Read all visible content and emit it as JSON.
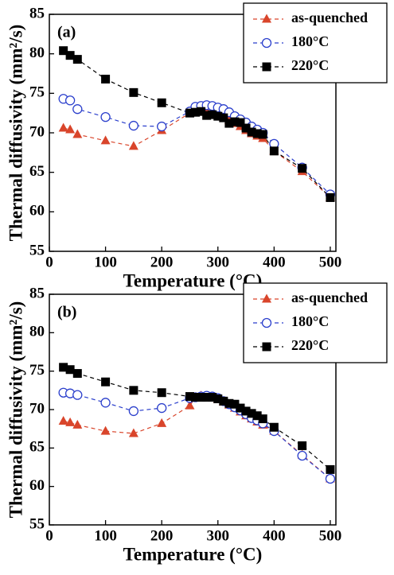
{
  "chart_data": [
    {
      "type": "line",
      "annotation": "(a)",
      "x_label": "Temperature (°C)",
      "y_label": "Thermal diffusivity (mm²/s)",
      "x": [
        25,
        37,
        50,
        100,
        150,
        200,
        250,
        260,
        270,
        280,
        290,
        300,
        310,
        320,
        330,
        340,
        350,
        360,
        370,
        380,
        400,
        450,
        500
      ],
      "series": [
        {
          "name": "as-quenched",
          "color": "#d9452b",
          "marker": "triangle",
          "values": [
            70.6,
            70.4,
            69.8,
            69.0,
            68.3,
            70.3,
            72.5,
            72.6,
            72.8,
            72.7,
            72.5,
            72.2,
            72.0,
            71.6,
            71.2,
            70.8,
            70.3,
            69.9,
            69.6,
            69.3,
            67.7,
            65.1,
            61.8
          ]
        },
        {
          "name": "180°C",
          "color": "#2b3fcc",
          "marker": "circle",
          "values": [
            74.3,
            74.1,
            73.0,
            72.0,
            70.9,
            70.8,
            72.7,
            73.3,
            73.4,
            73.5,
            73.4,
            73.2,
            73.0,
            72.6,
            72.1,
            71.7,
            71.3,
            70.8,
            70.4,
            70.0,
            68.6,
            65.6,
            62.2
          ]
        },
        {
          "name": "220°C",
          "color": "#000000",
          "marker": "square",
          "values": [
            80.4,
            79.8,
            79.3,
            76.8,
            75.1,
            73.8,
            72.5,
            72.6,
            72.7,
            72.2,
            72.3,
            72.1,
            71.9,
            71.2,
            71.4,
            71.3,
            70.6,
            70.1,
            69.9,
            69.8,
            67.7,
            65.5,
            61.8
          ]
        }
      ],
      "xlim": [
        0,
        510
      ],
      "xticks": [
        0,
        100,
        200,
        300,
        400,
        500
      ],
      "ylim": [
        55,
        85
      ],
      "yticks": [
        55,
        60,
        65,
        70,
        75,
        80,
        85
      ],
      "legend": "upper right"
    },
    {
      "type": "line",
      "annotation": "(b)",
      "x_label": "Temperature (°C)",
      "y_label": "Thermal diffusivity (mm²/s)",
      "x": [
        25,
        37,
        50,
        100,
        150,
        200,
        250,
        260,
        270,
        280,
        290,
        300,
        310,
        320,
        330,
        340,
        350,
        360,
        370,
        380,
        400,
        450,
        500
      ],
      "series": [
        {
          "name": "as-quenched",
          "color": "#d9452b",
          "marker": "triangle",
          "values": [
            68.5,
            68.3,
            68.0,
            67.2,
            66.9,
            68.2,
            70.5,
            71.6,
            71.8,
            71.7,
            71.6,
            71.3,
            71.0,
            70.6,
            70.2,
            69.7,
            69.2,
            68.8,
            68.4,
            68.0,
            67.2,
            64.1,
            61.0
          ]
        },
        {
          "name": "180°C",
          "color": "#2b3fcc",
          "marker": "circle",
          "values": [
            72.2,
            72.1,
            71.9,
            70.9,
            69.8,
            70.2,
            71.5,
            71.6,
            71.7,
            71.8,
            71.7,
            71.5,
            71.1,
            70.7,
            70.3,
            69.9,
            69.4,
            68.9,
            68.6,
            68.2,
            67.2,
            64.0,
            61.0
          ]
        },
        {
          "name": "220°C",
          "color": "#000000",
          "marker": "square",
          "values": [
            75.5,
            75.2,
            74.7,
            73.6,
            72.5,
            72.2,
            71.7,
            71.6,
            71.6,
            71.6,
            71.6,
            71.4,
            71.1,
            70.8,
            70.7,
            70.2,
            69.8,
            69.5,
            69.2,
            68.8,
            67.7,
            65.3,
            62.2
          ]
        }
      ],
      "xlim": [
        0,
        510
      ],
      "xticks": [
        0,
        100,
        200,
        300,
        400,
        500
      ],
      "ylim": [
        55,
        85
      ],
      "yticks": [
        55,
        60,
        65,
        70,
        75,
        80,
        85
      ],
      "legend": "upper right"
    }
  ]
}
